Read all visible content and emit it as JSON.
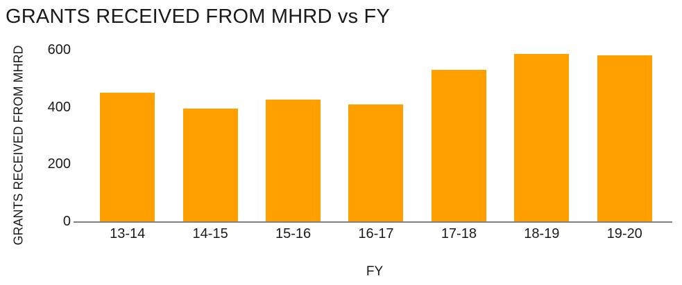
{
  "chart_data": {
    "type": "bar",
    "title": "GRANTS RECEIVED FROM MHRD vs FY",
    "xlabel": "FY",
    "ylabel": "GRANTS RECEIVED FROM MHRD",
    "categories": [
      "13-14",
      "14-15",
      "15-16",
      "16-17",
      "17-18",
      "18-19",
      "19-20"
    ],
    "values": [
      450,
      395,
      425,
      410,
      530,
      585,
      580
    ],
    "ylim": [
      0,
      600
    ],
    "yticks": [
      0,
      200,
      400,
      600
    ],
    "grid": false,
    "legend": false,
    "colors": {
      "bar": "#ffa000",
      "axis_line": "#7f7f7f",
      "text": "#1a1a1a",
      "background": "#ffffff"
    }
  }
}
